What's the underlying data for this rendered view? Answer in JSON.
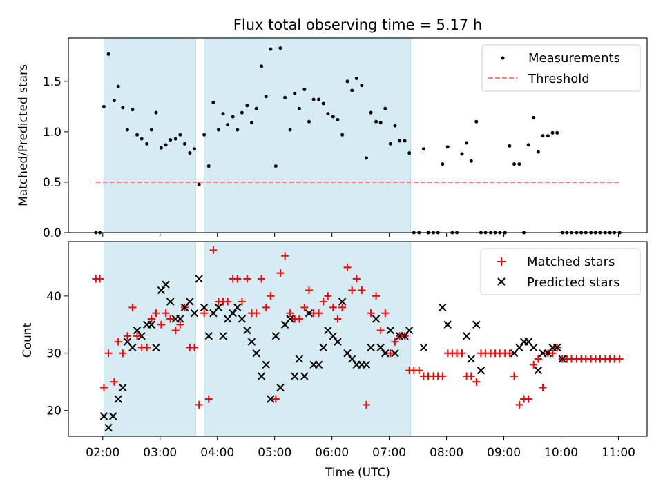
{
  "chart_data": [
    {
      "type": "scatter",
      "title": "Flux total observing time = 5.17 h",
      "xlabel": "",
      "ylabel": "Matched/Predicted stars",
      "xlim": [
        1.4,
        11.5
      ],
      "ylim": [
        0.0,
        1.93
      ],
      "xticks": [
        2,
        3,
        4,
        5,
        6,
        7,
        8,
        9,
        10,
        11
      ],
      "xticklabels": [
        "02:00",
        "03:00",
        "04:00",
        "05:00",
        "06:00",
        "07:00",
        "08:00",
        "09:00",
        "10:00",
        "11:00"
      ],
      "yticks": [
        0.0,
        0.5,
        1.0,
        1.5
      ],
      "yticklabels": [
        "0.0",
        "0.5",
        "1.0",
        "1.5"
      ],
      "shaded_intervals": [
        [
          2.02,
          3.62
        ],
        [
          3.77,
          7.37
        ]
      ],
      "shade_color": "#add8e6",
      "legend_position": "top-right",
      "series": [
        {
          "name": "Measurements",
          "kind": "dot",
          "color": "#000000",
          "x": [
            1.88,
            1.95,
            2.02,
            2.1,
            2.2,
            2.27,
            2.35,
            2.43,
            2.52,
            2.6,
            2.68,
            2.77,
            2.85,
            2.93,
            3.02,
            3.1,
            3.18,
            3.27,
            3.35,
            3.43,
            3.52,
            3.6,
            3.68,
            3.77,
            3.85,
            3.93,
            4.02,
            4.1,
            4.18,
            4.27,
            4.35,
            4.43,
            4.52,
            4.6,
            4.68,
            4.77,
            4.85,
            4.93,
            5.02,
            5.1,
            5.18,
            5.27,
            5.35,
            5.43,
            5.52,
            5.6,
            5.68,
            5.77,
            5.85,
            5.93,
            6.02,
            6.1,
            6.18,
            6.27,
            6.35,
            6.43,
            6.52,
            6.6,
            6.68,
            6.77,
            6.85,
            6.93,
            7.02,
            7.1,
            7.18,
            7.27,
            7.35,
            7.43,
            7.52,
            7.6,
            7.68,
            7.77,
            7.85,
            7.93,
            8.02,
            8.1,
            8.18,
            8.27,
            8.35,
            8.43,
            8.52,
            8.6,
            8.68,
            8.77,
            8.85,
            8.93,
            9.02,
            9.1,
            9.18,
            9.27,
            9.35,
            9.43,
            9.52,
            9.6,
            9.68,
            9.77,
            9.85,
            9.93,
            10.02,
            10.1,
            10.18,
            10.27,
            10.35,
            10.43,
            10.52,
            10.6,
            10.68,
            10.77,
            10.85,
            10.93,
            11.02
          ],
          "y": [
            0.0,
            0.0,
            1.25,
            1.77,
            1.31,
            1.45,
            1.24,
            1.02,
            1.22,
            0.97,
            0.93,
            0.88,
            1.02,
            1.19,
            0.84,
            0.87,
            0.92,
            0.93,
            0.97,
            0.88,
            0.79,
            0.83,
            0.48,
            0.97,
            0.66,
            1.29,
            1.02,
            1.18,
            1.07,
            1.15,
            1.02,
            1.19,
            1.26,
            1.09,
            1.23,
            1.65,
            1.35,
            1.82,
            0.66,
            1.83,
            1.34,
            1.02,
            1.38,
            1.23,
            1.42,
            1.1,
            1.32,
            1.32,
            1.28,
            1.18,
            1.15,
            1.12,
            0.97,
            1.5,
            1.41,
            1.53,
            1.46,
            0.74,
            1.19,
            1.1,
            1.09,
            1.23,
            0.88,
            1.06,
            0.91,
            0.91,
            0.79,
            0.0,
            0.0,
            0.83,
            0.0,
            0.0,
            0.0,
            0.68,
            0.85,
            0.0,
            0.0,
            0.78,
            0.89,
            0.71,
            1.1,
            0.0,
            0.0,
            0.0,
            0.0,
            0.0,
            0.0,
            0.86,
            0.68,
            0.68,
            0.0,
            0.87,
            1.14,
            0.8,
            0.96,
            0.96,
            0.99,
            0.99,
            0.0,
            0.0,
            0.0,
            0.0,
            0.0,
            0.0,
            0.0,
            0.0,
            0.0,
            0.0,
            0.0,
            0.0,
            0.0
          ]
        },
        {
          "name": "Threshold",
          "kind": "dashed-line",
          "color": "#ff7f7f",
          "x": [
            1.88,
            11.02
          ],
          "y": [
            0.5,
            0.5
          ]
        }
      ]
    },
    {
      "type": "scatter",
      "title": "",
      "xlabel": "Time (UTC)",
      "ylabel": "Count",
      "xlim": [
        1.4,
        11.5
      ],
      "ylim": [
        15.5,
        49.5
      ],
      "xticks": [
        2,
        3,
        4,
        5,
        6,
        7,
        8,
        9,
        10,
        11
      ],
      "xticklabels": [
        "02:00",
        "03:00",
        "04:00",
        "05:00",
        "06:00",
        "07:00",
        "08:00",
        "09:00",
        "10:00",
        "11:00"
      ],
      "yticks": [
        20,
        30,
        40
      ],
      "yticklabels": [
        "20",
        "30",
        "40"
      ],
      "shaded_intervals": [
        [
          2.02,
          3.62
        ],
        [
          3.77,
          7.37
        ]
      ],
      "shade_color": "#add8e6",
      "legend_position": "top-right",
      "series": [
        {
          "name": "Matched stars",
          "kind": "plus",
          "color": "#ff0000",
          "x": [
            1.88,
            1.95,
            2.02,
            2.1,
            2.2,
            2.27,
            2.35,
            2.43,
            2.52,
            2.6,
            2.68,
            2.77,
            2.85,
            2.93,
            3.02,
            3.1,
            3.18,
            3.27,
            3.35,
            3.43,
            3.52,
            3.6,
            3.68,
            3.77,
            3.85,
            3.93,
            4.02,
            4.1,
            4.18,
            4.27,
            4.35,
            4.43,
            4.52,
            4.6,
            4.68,
            4.77,
            4.85,
            4.93,
            5.02,
            5.1,
            5.18,
            5.27,
            5.35,
            5.43,
            5.52,
            5.6,
            5.68,
            5.77,
            5.85,
            5.93,
            6.02,
            6.1,
            6.18,
            6.27,
            6.35,
            6.43,
            6.52,
            6.6,
            6.68,
            6.77,
            6.85,
            6.93,
            7.02,
            7.1,
            7.18,
            7.27,
            7.35,
            7.43,
            7.52,
            7.6,
            7.68,
            7.77,
            7.85,
            7.93,
            8.02,
            8.1,
            8.18,
            8.27,
            8.35,
            8.43,
            8.52,
            8.6,
            8.68,
            8.77,
            8.85,
            8.93,
            9.02,
            9.1,
            9.18,
            9.27,
            9.35,
            9.43,
            9.52,
            9.6,
            9.68,
            9.77,
            9.85,
            9.93,
            10.02,
            10.1,
            10.18,
            10.27,
            10.35,
            10.43,
            10.52,
            10.6,
            10.68,
            10.77,
            10.85,
            10.93,
            11.02
          ],
          "y": [
            43,
            43,
            24,
            30,
            25,
            32,
            30,
            33,
            38,
            33,
            31,
            31,
            36,
            37,
            35,
            37,
            36,
            34,
            35,
            38,
            31,
            31,
            21,
            37,
            22,
            48,
            39,
            39,
            39,
            43,
            43,
            39,
            43,
            37,
            37,
            43,
            38,
            40,
            22,
            44,
            47,
            37,
            36,
            36,
            38,
            41,
            37,
            37,
            39,
            40,
            38,
            36,
            38,
            45,
            41,
            43,
            41,
            21,
            37,
            40,
            34,
            37,
            30,
            32,
            33,
            33,
            27,
            27,
            27,
            26,
            26,
            26,
            26,
            26,
            30,
            30,
            30,
            30,
            26,
            26,
            25,
            30,
            30,
            30,
            30,
            30,
            30,
            30,
            26,
            21,
            22,
            22,
            28,
            29,
            24,
            30,
            30,
            31,
            29,
            29,
            29,
            29,
            29,
            29,
            29,
            29,
            29,
            29,
            29,
            29,
            29
          ]
        },
        {
          "name": "Predicted stars",
          "kind": "x",
          "color": "#000000",
          "x": [
            2.02,
            2.1,
            2.18,
            2.27,
            2.35,
            2.43,
            2.52,
            2.6,
            2.68,
            2.77,
            2.85,
            2.93,
            3.02,
            3.1,
            3.18,
            3.27,
            3.35,
            3.43,
            3.52,
            3.6,
            3.68,
            3.77,
            3.85,
            3.93,
            4.02,
            4.1,
            4.18,
            4.27,
            4.35,
            4.43,
            4.52,
            4.6,
            4.68,
            4.77,
            4.85,
            4.93,
            5.02,
            5.1,
            5.18,
            5.27,
            5.35,
            5.43,
            5.52,
            5.6,
            5.68,
            5.77,
            5.85,
            5.93,
            6.02,
            6.1,
            6.18,
            6.27,
            6.35,
            6.43,
            6.52,
            6.6,
            6.68,
            6.77,
            6.85,
            6.93,
            7.02,
            7.1,
            7.18,
            7.27,
            7.35,
            7.6,
            7.93,
            8.02,
            8.35,
            8.43,
            8.52,
            8.6,
            9.18,
            9.27,
            9.35,
            9.43,
            9.52,
            9.6,
            9.68,
            9.77,
            9.85,
            9.93,
            10.02
          ],
          "y": [
            19,
            17,
            19,
            22,
            24,
            32,
            31,
            34,
            33,
            35,
            35,
            31,
            41,
            42,
            39,
            36,
            36,
            38,
            39,
            37,
            43,
            38,
            33,
            37,
            38,
            33,
            36,
            37,
            38,
            36,
            34,
            32,
            30,
            26,
            28,
            22,
            33,
            24,
            35,
            36,
            26,
            29,
            26,
            37,
            28,
            28,
            31,
            34,
            33,
            32,
            39,
            30,
            29,
            28,
            28,
            28,
            31,
            36,
            31,
            30,
            34,
            30,
            33,
            33,
            34,
            31,
            38,
            35,
            33,
            29,
            35,
            27,
            30,
            31,
            32,
            32,
            31,
            27,
            30,
            30,
            31,
            31,
            29
          ]
        }
      ]
    }
  ]
}
